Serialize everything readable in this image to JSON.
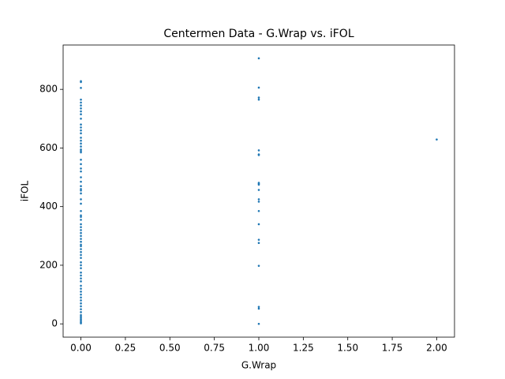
{
  "chart_data": {
    "type": "scatter",
    "title": "Centermen Data - G.Wrap vs. iFOL",
    "x_label": "G.Wrap",
    "y_label": "iFOL",
    "series": [
      {
        "color": "#1f77b4",
        "x": [
          0,
          0,
          0,
          0,
          0,
          0,
          0,
          0,
          0,
          0,
          0,
          0,
          0,
          0,
          0,
          0,
          0,
          0,
          0,
          0,
          0,
          0,
          0,
          0,
          0,
          0,
          0,
          0,
          0,
          0,
          0,
          0,
          0,
          0,
          0,
          0,
          0,
          0,
          0,
          0,
          0,
          0,
          0,
          0,
          0,
          0,
          0,
          0,
          0,
          0,
          0,
          0,
          0,
          0,
          0,
          0,
          0,
          0,
          0,
          0,
          0,
          0,
          0,
          0,
          0,
          0,
          0,
          0,
          0,
          0,
          0,
          0,
          0,
          0,
          1,
          1,
          1,
          1,
          1,
          1,
          1,
          1,
          1,
          1,
          1,
          1,
          1,
          1,
          1,
          1,
          1,
          1,
          1,
          1,
          1,
          2
        ],
        "values": [
          828,
          825,
          805,
          765,
          755,
          745,
          735,
          725,
          715,
          700,
          680,
          670,
          660,
          650,
          635,
          625,
          615,
          605,
          595,
          590,
          585,
          560,
          545,
          530,
          520,
          500,
          485,
          470,
          460,
          455,
          445,
          425,
          410,
          385,
          370,
          365,
          355,
          340,
          330,
          320,
          310,
          300,
          290,
          280,
          270,
          265,
          255,
          245,
          235,
          225,
          210,
          200,
          190,
          175,
          165,
          155,
          145,
          130,
          120,
          110,
          100,
          90,
          80,
          70,
          60,
          50,
          40,
          30,
          25,
          20,
          15,
          10,
          5,
          2,
          906,
          806,
          772,
          765,
          592,
          578,
          576,
          481,
          478,
          475,
          457,
          425,
          417,
          385,
          340,
          287,
          276,
          198,
          58,
          52,
          0,
          629
        ]
      }
    ],
    "xlim": [
      -0.1,
      2.1
    ],
    "ylim": [
      -45.3,
      951.3
    ],
    "xticks": [
      {
        "value": 0,
        "label": "0.00"
      },
      {
        "value": 0.25,
        "label": "0.25"
      },
      {
        "value": 0.5,
        "label": "0.50"
      },
      {
        "value": 0.75,
        "label": "0.75"
      },
      {
        "value": 1,
        "label": "1.00"
      },
      {
        "value": 1.25,
        "label": "1.25"
      },
      {
        "value": 1.5,
        "label": "1.50"
      },
      {
        "value": 1.75,
        "label": "1.75"
      },
      {
        "value": 2,
        "label": "2.00"
      }
    ],
    "yticks": [
      0,
      200,
      400,
      600,
      800
    ]
  }
}
